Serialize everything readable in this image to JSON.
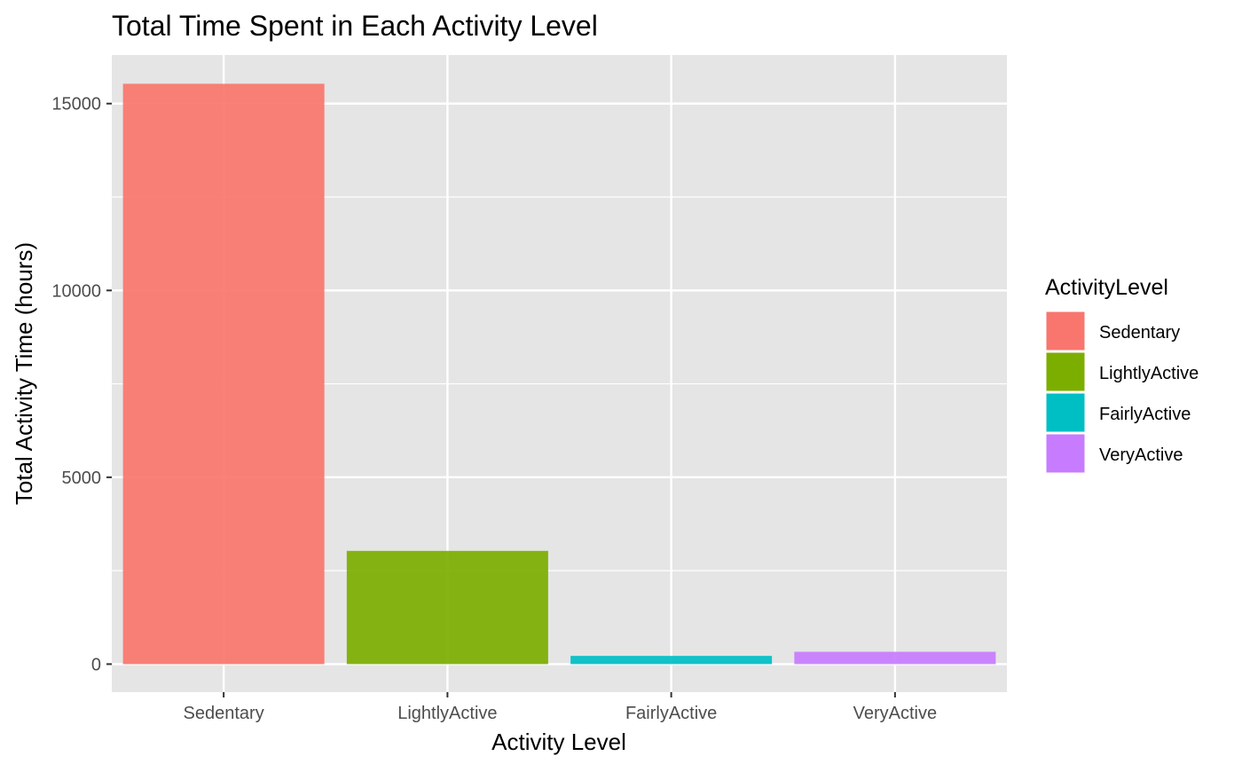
{
  "chart_data": {
    "type": "bar",
    "title": "Total Time Spent in Each Activity Level",
    "xlabel": "Activity Level",
    "ylabel": "Total Activity Time (hours)",
    "categories": [
      "Sedentary",
      "LightlyActive",
      "FairlyActive",
      "VeryActive"
    ],
    "values": [
      15530,
      3030,
      220,
      330
    ],
    "colors": [
      "#F8766D",
      "#7CAE00",
      "#00BFC4",
      "#C77CFF"
    ],
    "ylim": [
      -750,
      16300
    ],
    "yticks": [
      0,
      5000,
      10000,
      15000
    ],
    "grid": true,
    "panel_background": "#E5E5E5",
    "legend": {
      "title": "ActivityLevel",
      "placement": "right",
      "entries": [
        "Sedentary",
        "LightlyActive",
        "FairlyActive",
        "VeryActive"
      ]
    }
  }
}
